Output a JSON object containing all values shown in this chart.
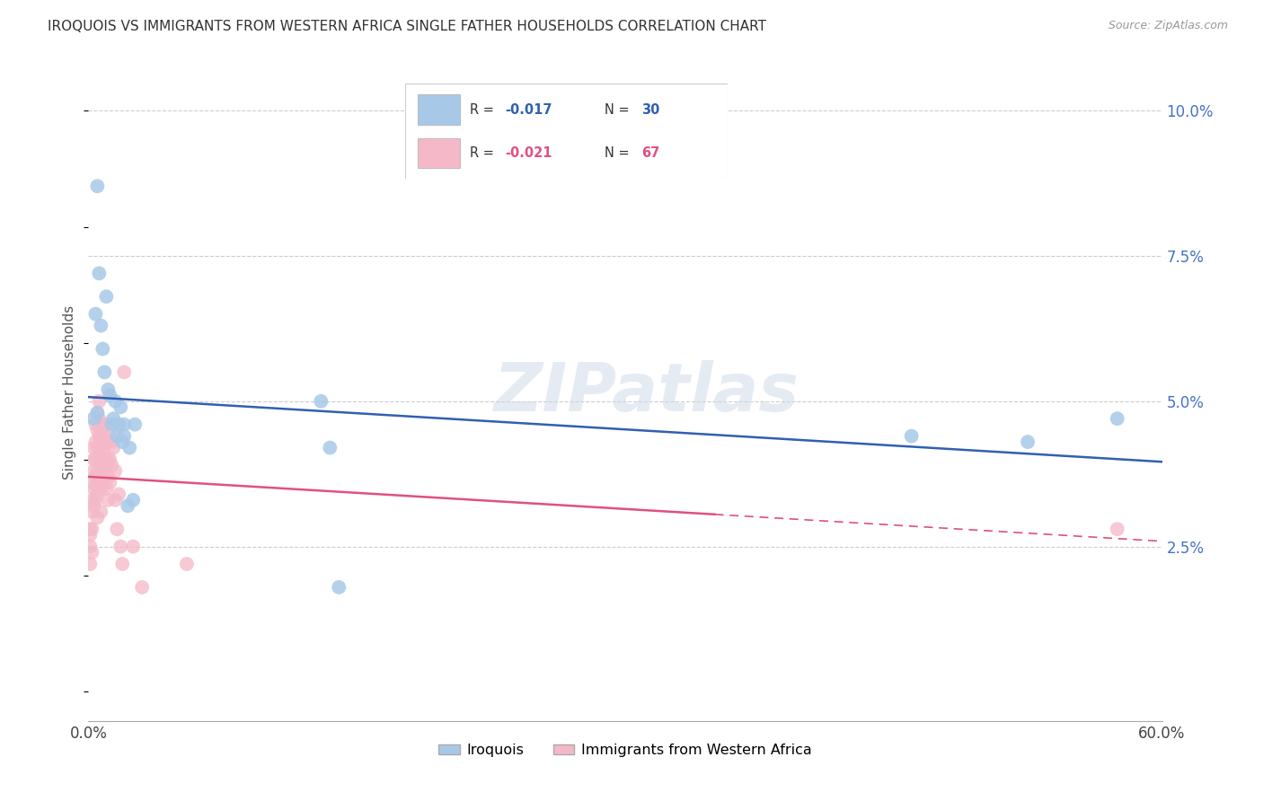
{
  "title": "IROQUOIS VS IMMIGRANTS FROM WESTERN AFRICA SINGLE FATHER HOUSEHOLDS CORRELATION CHART",
  "source": "Source: ZipAtlas.com",
  "ylabel": "Single Father Households",
  "legend_label1": "Iroquois",
  "legend_label2": "Immigrants from Western Africa",
  "blue_color": "#a8c8e8",
  "pink_color": "#f4b8c8",
  "blue_line_color": "#3060b0",
  "pink_line_color": "#e05080",
  "xlim": [
    0.0,
    0.6
  ],
  "ylim": [
    -0.005,
    0.108
  ],
  "r_blue": "-0.017",
  "n_blue": "30",
  "r_pink": "-0.021",
  "n_pink": "67",
  "blue_x": [
    0.003,
    0.004,
    0.005,
    0.005,
    0.006,
    0.007,
    0.008,
    0.009,
    0.01,
    0.011,
    0.012,
    0.013,
    0.014,
    0.015,
    0.016,
    0.017,
    0.018,
    0.019,
    0.02,
    0.02,
    0.022,
    0.023,
    0.025,
    0.026,
    0.13,
    0.135,
    0.14,
    0.46,
    0.525,
    0.575
  ],
  "blue_y": [
    0.047,
    0.065,
    0.087,
    0.048,
    0.072,
    0.063,
    0.059,
    0.055,
    0.068,
    0.052,
    0.051,
    0.046,
    0.047,
    0.05,
    0.044,
    0.046,
    0.049,
    0.043,
    0.044,
    0.046,
    0.032,
    0.042,
    0.033,
    0.046,
    0.05,
    0.042,
    0.018,
    0.044,
    0.043,
    0.047
  ],
  "pink_x": [
    0.001,
    0.001,
    0.001,
    0.001,
    0.002,
    0.002,
    0.002,
    0.002,
    0.002,
    0.003,
    0.003,
    0.003,
    0.003,
    0.003,
    0.004,
    0.004,
    0.004,
    0.004,
    0.004,
    0.005,
    0.005,
    0.005,
    0.005,
    0.005,
    0.005,
    0.006,
    0.006,
    0.006,
    0.006,
    0.006,
    0.007,
    0.007,
    0.007,
    0.007,
    0.007,
    0.008,
    0.008,
    0.008,
    0.008,
    0.009,
    0.009,
    0.009,
    0.01,
    0.01,
    0.01,
    0.01,
    0.011,
    0.011,
    0.011,
    0.011,
    0.012,
    0.012,
    0.012,
    0.013,
    0.013,
    0.014,
    0.015,
    0.015,
    0.016,
    0.017,
    0.018,
    0.019,
    0.02,
    0.025,
    0.03,
    0.055,
    0.575
  ],
  "pink_y": [
    0.028,
    0.027,
    0.025,
    0.022,
    0.036,
    0.033,
    0.031,
    0.028,
    0.024,
    0.042,
    0.04,
    0.038,
    0.035,
    0.032,
    0.046,
    0.043,
    0.04,
    0.037,
    0.033,
    0.048,
    0.045,
    0.042,
    0.038,
    0.034,
    0.03,
    0.05,
    0.047,
    0.044,
    0.04,
    0.036,
    0.044,
    0.041,
    0.038,
    0.035,
    0.031,
    0.046,
    0.043,
    0.04,
    0.036,
    0.044,
    0.041,
    0.037,
    0.046,
    0.043,
    0.039,
    0.035,
    0.043,
    0.04,
    0.037,
    0.033,
    0.044,
    0.04,
    0.036,
    0.043,
    0.039,
    0.042,
    0.038,
    0.033,
    0.028,
    0.034,
    0.025,
    0.022,
    0.055,
    0.025,
    0.018,
    0.022,
    0.028
  ]
}
